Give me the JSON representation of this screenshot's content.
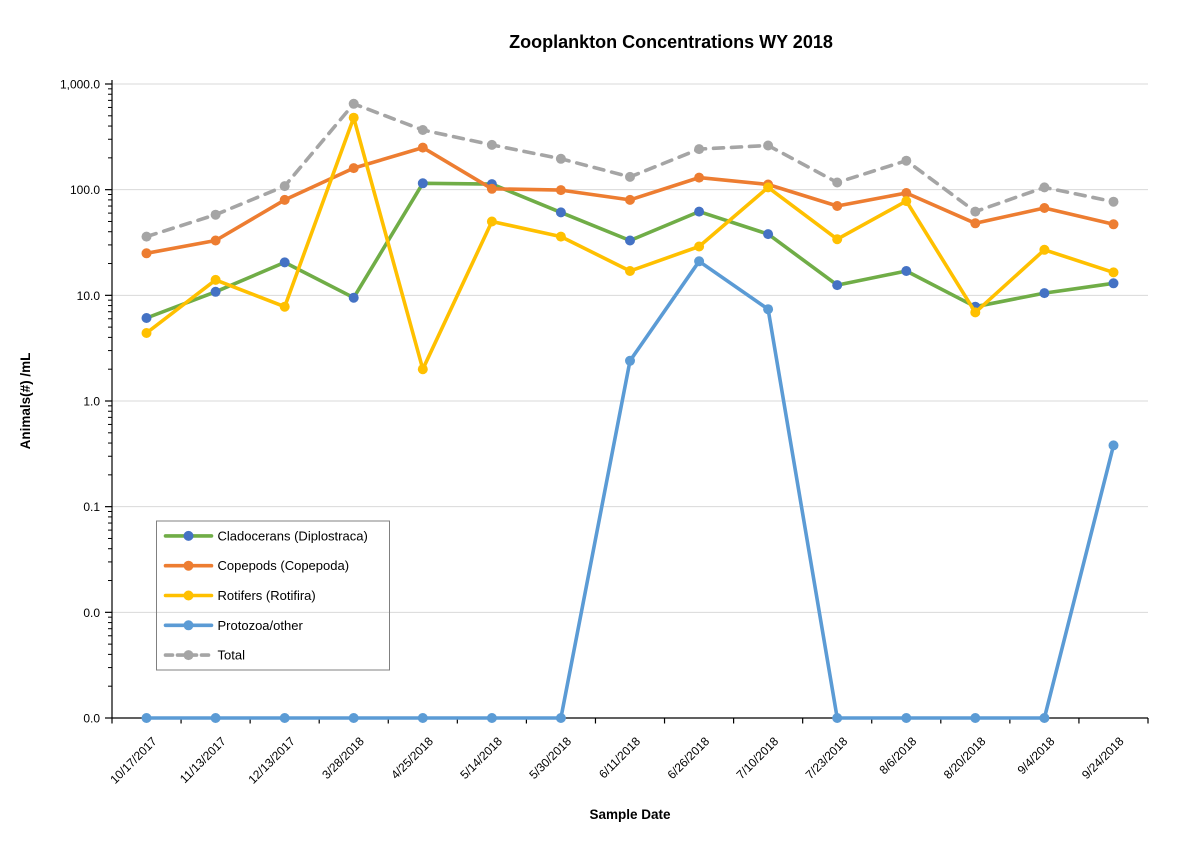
{
  "chart_data": {
    "type": "line",
    "title": "Zooplankton Concentrations WY 2018",
    "xlabel": "Sample Date",
    "ylabel": "Animals(#) /mL",
    "y_scale": "log",
    "ylim": [
      0.001,
      1000
    ],
    "y_tick_values": [
      1000,
      100,
      10,
      1,
      0.1,
      0.01,
      0.001
    ],
    "y_tick_labels": [
      "1,000.0",
      "100.0",
      "10.0",
      "1.0",
      "0.1",
      "0.0",
      "0.0"
    ],
    "grid": true,
    "grid_color": "#D9D9D9",
    "axis_color": "#000000",
    "legend_position": "inside-lower-left",
    "legend_border_color": "#808080",
    "zeros_plotted_at_axis_minimum": true,
    "categories": [
      "10/17/2017",
      "11/13/2017",
      "12/13/2017",
      "3/28/2018",
      "4/25/2018",
      "5/14/2018",
      "5/30/2018",
      "6/11/2018",
      "6/26/2018",
      "7/10/2018",
      "7/23/2018",
      "8/6/2018",
      "8/20/2018",
      "9/4/2018",
      "9/24/2018"
    ],
    "series": [
      {
        "name": "Cladocerans (Diplostraca)",
        "line_color": "#70AD47",
        "marker_color": "#4472C4",
        "dashed": false,
        "values": [
          6.1,
          10.8,
          20.5,
          9.5,
          115,
          113,
          61,
          33,
          62,
          38,
          12.5,
          17,
          7.8,
          10.5,
          13
        ]
      },
      {
        "name": "Copepods (Copepoda)",
        "line_color": "#ED7D31",
        "marker_color": "#ED7D31",
        "dashed": false,
        "values": [
          25,
          33,
          80,
          160,
          250,
          102,
          99,
          80,
          130,
          112,
          70,
          93,
          48,
          67,
          47
        ]
      },
      {
        "name": "Rotifers (Rotifira)",
        "line_color": "#FFC000",
        "marker_color": "#FFC000",
        "dashed": false,
        "values": [
          4.4,
          14,
          7.8,
          480,
          2,
          50,
          36,
          17,
          29,
          105,
          34,
          78,
          6.9,
          27,
          16.5
        ]
      },
      {
        "name": "Protozoa/other",
        "line_color": "#5B9BD5",
        "marker_color": "#5B9BD5",
        "dashed": false,
        "values": [
          0,
          0,
          0,
          0,
          0,
          0,
          0,
          2.4,
          21,
          7.4,
          0,
          0,
          0,
          0,
          0.38
        ]
      },
      {
        "name": "Total",
        "line_color": "#A5A5A5",
        "marker_color": "#A5A5A5",
        "dashed": true,
        "values": [
          36,
          58,
          108,
          650,
          367,
          265,
          196,
          132,
          242,
          262,
          117,
          188,
          62,
          105,
          77
        ]
      }
    ]
  }
}
